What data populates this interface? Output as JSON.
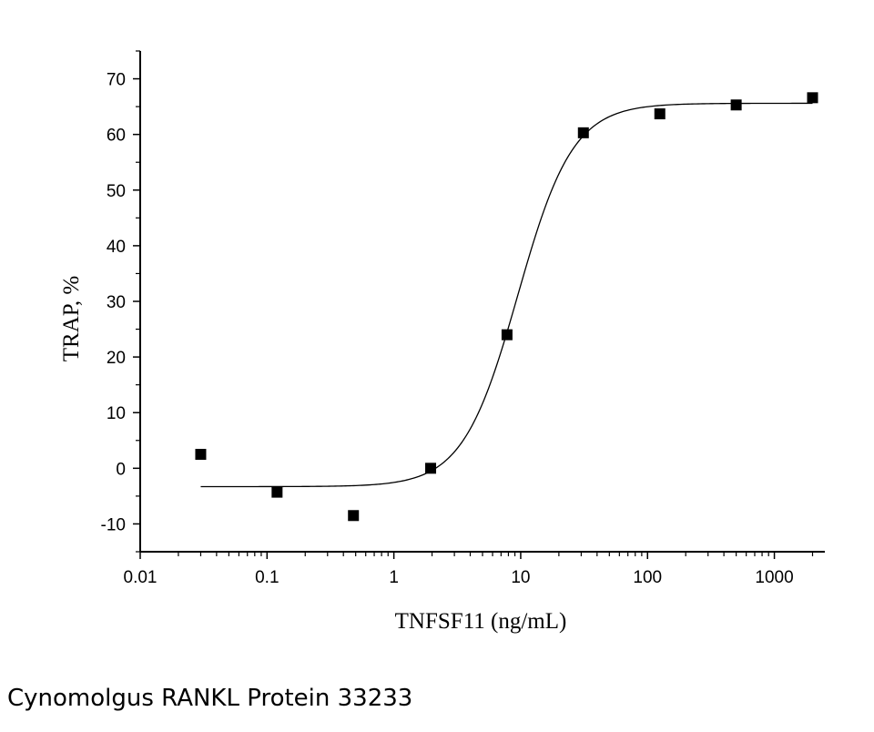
{
  "caption": "Cynomolgus RANKL Protein 33233",
  "chart_data": {
    "type": "scatter",
    "title": "",
    "xlabel": "TNFSF11 (ng/mL)",
    "ylabel": "TRAP, %",
    "xscale": "log",
    "xlim": [
      0.01,
      2500
    ],
    "ylim": [
      -15,
      75
    ],
    "x_ticks": [
      0.01,
      0.1,
      1,
      10,
      100,
      1000
    ],
    "x_tick_labels": [
      "0.01",
      "0.1",
      "1",
      "10",
      "100",
      "1000"
    ],
    "y_ticks": [
      -10,
      0,
      10,
      20,
      30,
      40,
      50,
      60,
      70
    ],
    "y_tick_labels": [
      "-10",
      "0",
      "10",
      "20",
      "30",
      "40",
      "50",
      "60",
      "70"
    ],
    "grid": false,
    "series": [
      {
        "marker": "square",
        "color": "#000000",
        "x": [
          0.03,
          0.12,
          0.48,
          1.95,
          7.8,
          31.2,
          125,
          500,
          2000
        ],
        "y": [
          2.5,
          -4.3,
          -8.5,
          0,
          24,
          60.3,
          63.7,
          65.3,
          66.6
        ]
      }
    ],
    "fit": {
      "type": "logistic",
      "color": "#000000",
      "bottom": -3.3,
      "top": 65.6,
      "ec50": 9.5,
      "hill": 2.0,
      "x_range": [
        0.03,
        2000
      ]
    }
  }
}
